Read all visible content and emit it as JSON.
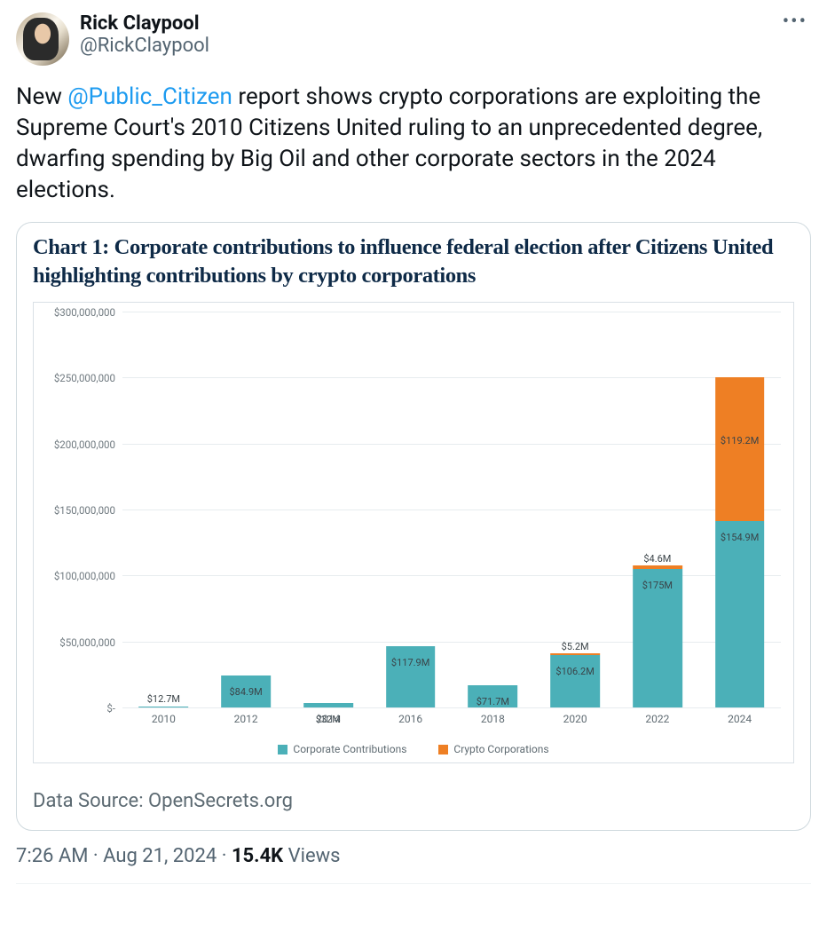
{
  "author": {
    "display_name": "Rick Claypool",
    "handle": "@RickClaypool"
  },
  "tweet_text": {
    "prefix": "New ",
    "mention": "@Public_Citizen",
    "suffix": " report shows crypto corporations are exploiting the Supreme Court's 2010 Citizens United ruling to an unprecedented degree, dwarfing spending by Big Oil and other corporate sectors in the 2024 elections."
  },
  "chart": {
    "title": "Chart 1: Corporate contributions to influence federal election after Citizens United highlighting contributions by crypto corporations",
    "y_axis": {
      "max": 300000000,
      "ticks": [
        {
          "value": 0,
          "label": "$-"
        },
        {
          "value": 50000000,
          "label": "$50,000,000"
        },
        {
          "value": 100000000,
          "label": "$100,000,000"
        },
        {
          "value": 150000000,
          "label": "$150,000,000"
        },
        {
          "value": 200000000,
          "label": "$200,000,000"
        },
        {
          "value": 250000000,
          "label": "$250,000,000"
        },
        {
          "value": 300000000,
          "label": "$300,000,000"
        }
      ]
    },
    "categories": [
      "2010",
      "2012",
      "2014",
      "2016",
      "2018",
      "2020",
      "2022",
      "2024"
    ],
    "series": [
      {
        "id": "corp",
        "name": "Corporate Contributions",
        "color": "#4bb0b8"
      },
      {
        "id": "crypto",
        "name": "Crypto Corporations",
        "color": "#ee7f24"
      }
    ],
    "bars": [
      {
        "year": "2010",
        "corp": {
          "value": 12700000,
          "label": "$12.7M"
        },
        "crypto": null
      },
      {
        "year": "2012",
        "corp": {
          "value": 84900000,
          "label": "$84.9M"
        },
        "crypto": null
      },
      {
        "year": "2014",
        "corp": {
          "value": 32000000,
          "label": "$32M"
        },
        "crypto": null
      },
      {
        "year": "2016",
        "corp": {
          "value": 117900000,
          "label": "$117.9M"
        },
        "crypto": null
      },
      {
        "year": "2018",
        "corp": {
          "value": 71700000,
          "label": "$71.7M"
        },
        "crypto": null
      },
      {
        "year": "2020",
        "corp": {
          "value": 106200000,
          "label": "$106.2M"
        },
        "crypto": {
          "value": 5200000,
          "label": "$5.2M"
        }
      },
      {
        "year": "2022",
        "corp": {
          "value": 175000000,
          "label": "$175M"
        },
        "crypto": {
          "value": 4600000,
          "label": "$4.6M"
        }
      },
      {
        "year": "2024",
        "corp": {
          "value": 154900000,
          "label": "$154.9M"
        },
        "crypto": {
          "value": 119200000,
          "label": "$119.2M"
        }
      }
    ],
    "grid_color": "#e7ecef",
    "plot_border_color": "#d9e0e5",
    "label_text_color": "#3a4348",
    "axis_text_color": "#5f6b72",
    "title_color": "#0e2a47",
    "background_color": "#ffffff",
    "data_source": "Data Source: OpenSecrets.org"
  },
  "meta": {
    "time": "7:26 AM",
    "sep1": " · ",
    "date": "Aug 21, 2024",
    "sep2": " · ",
    "views_count": "15.4K",
    "views_label": " Views"
  },
  "colors": {
    "link": "#1d9bf0",
    "text_primary": "#0f1419",
    "text_secondary": "#536471",
    "card_border": "#cfd9de"
  }
}
